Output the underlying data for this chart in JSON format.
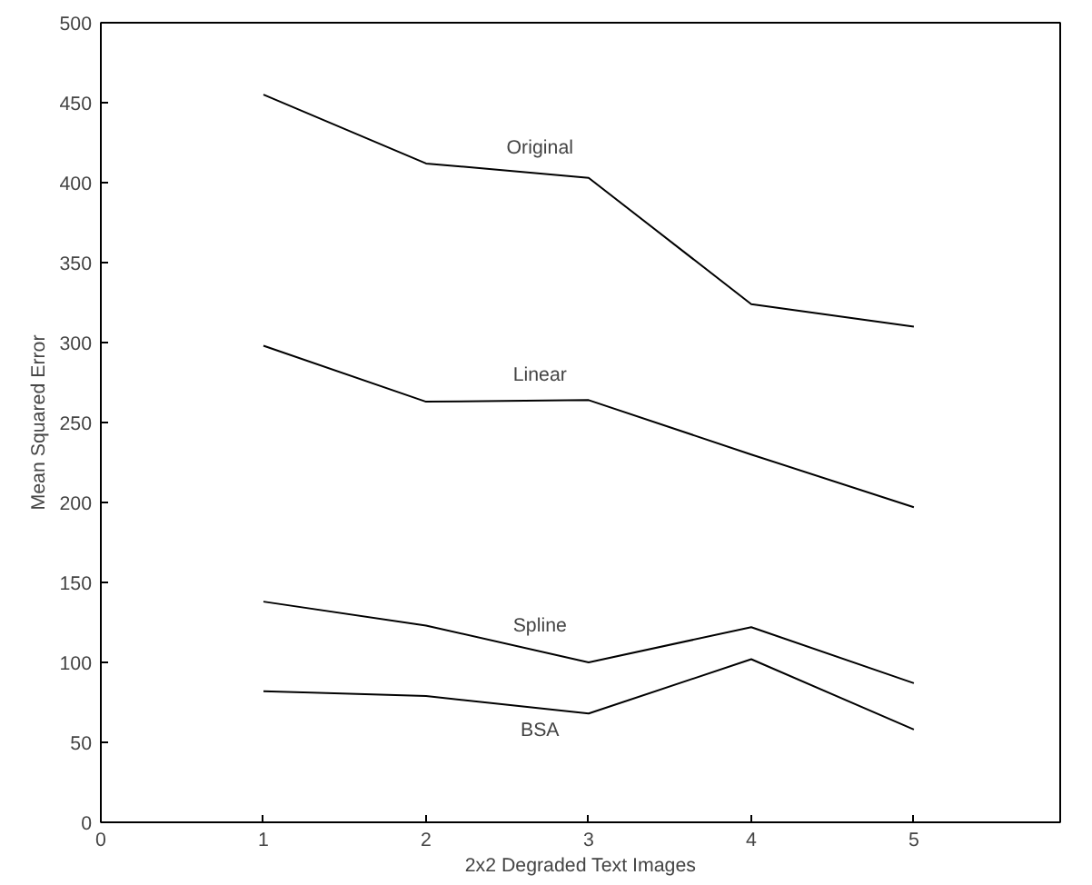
{
  "chart_data": {
    "type": "line",
    "xlabel": "2x2 Degraded Text Images",
    "ylabel": "Mean Squared Error",
    "x": [
      1,
      2,
      3,
      4,
      5
    ],
    "xlim": [
      0,
      5.9
    ],
    "xticks": [
      0,
      1,
      2,
      3,
      4,
      5
    ],
    "ylim": [
      0,
      500
    ],
    "yticks": [
      0,
      50,
      100,
      150,
      200,
      250,
      300,
      350,
      400,
      450,
      500
    ],
    "series": [
      {
        "name": "Original",
        "color": "#000000",
        "values": [
          455,
          412,
          403,
          324,
          310
        ]
      },
      {
        "name": "Linear",
        "color": "#000000",
        "values": [
          298,
          263,
          264,
          230,
          197
        ]
      },
      {
        "name": "Spline",
        "color": "#000000",
        "values": [
          138,
          123,
          100,
          122,
          87
        ]
      },
      {
        "name": "BSA",
        "color": "#000000",
        "values": [
          82,
          79,
          68,
          102,
          58
        ]
      }
    ]
  }
}
